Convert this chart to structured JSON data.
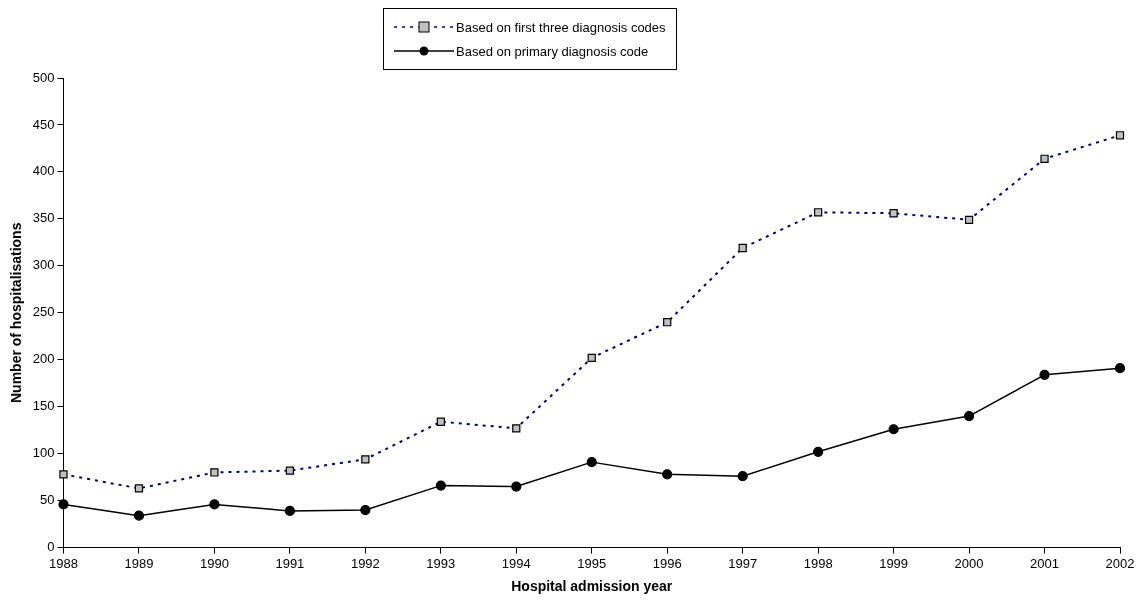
{
  "chart_data": {
    "type": "line",
    "xlabel": "Hospital admission year",
    "ylabel": "Number of hospitalisations",
    "categories": [
      "1988",
      "1989",
      "1990",
      "1991",
      "1992",
      "1993",
      "1994",
      "1995",
      "1996",
      "1997",
      "1998",
      "1999",
      "2000",
      "2001",
      "2002"
    ],
    "series": [
      {
        "name": "Based on first three diagnosis codes",
        "color": "#000080",
        "marker": "square",
        "line_style": "dotted",
        "values": [
          78,
          63,
          80,
          82,
          94,
          134,
          127,
          202,
          240,
          319,
          357,
          356,
          349,
          414,
          439
        ]
      },
      {
        "name": "Based on primary diagnosis code",
        "color": "#000000",
        "marker": "circle",
        "line_style": "solid",
        "values": [
          46,
          34,
          46,
          39,
          40,
          66,
          65,
          91,
          78,
          76,
          102,
          126,
          140,
          184,
          191
        ]
      }
    ],
    "ylim": [
      0,
      500
    ],
    "yticks": [
      0,
      50,
      100,
      150,
      200,
      250,
      300,
      350,
      400,
      450,
      500
    ],
    "grid": false,
    "legend": "top"
  }
}
